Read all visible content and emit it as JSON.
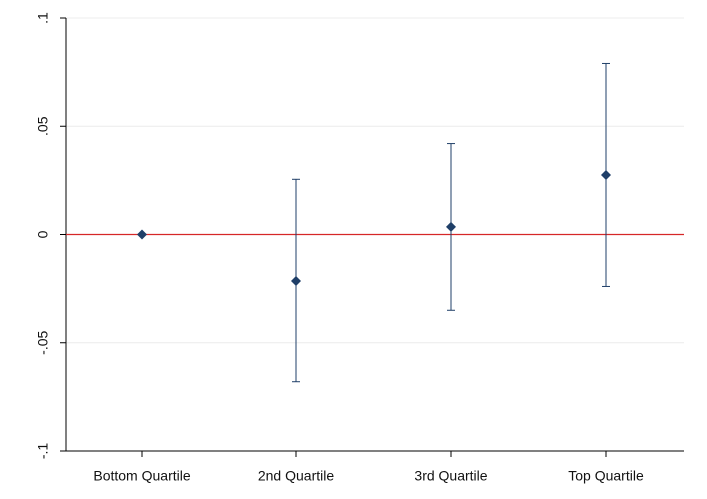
{
  "chart_data": {
    "type": "scatter",
    "title": "",
    "xlabel": "",
    "ylabel": "",
    "categories": [
      "Bottom Quartile",
      "2nd Quartile",
      "3rd Quartile",
      "Top Quartile"
    ],
    "series": [
      {
        "values": [
          0.0,
          -0.0215,
          0.0035,
          0.0275
        ],
        "ci_low": [
          0.0,
          -0.068,
          -0.035,
          -0.024
        ],
        "ci_high": [
          0.0,
          0.0255,
          0.042,
          0.079
        ]
      }
    ],
    "ylim": [
      -0.1,
      0.1
    ],
    "yticks": [
      {
        "value": -0.1,
        "label": "-.1"
      },
      {
        "value": -0.05,
        "label": "-.05"
      },
      {
        "value": 0,
        "label": "0"
      },
      {
        "value": 0.05,
        "label": ".05"
      },
      {
        "value": 0.1,
        "label": ".1"
      }
    ],
    "reference_line": {
      "value": 0
    },
    "grid": true,
    "legend": "none",
    "colors": {
      "marker": "#1f3f68",
      "errorbar": "#1f3f68",
      "reference_line": "#d62728",
      "grid": "#ececec",
      "axis": "#000000"
    }
  }
}
